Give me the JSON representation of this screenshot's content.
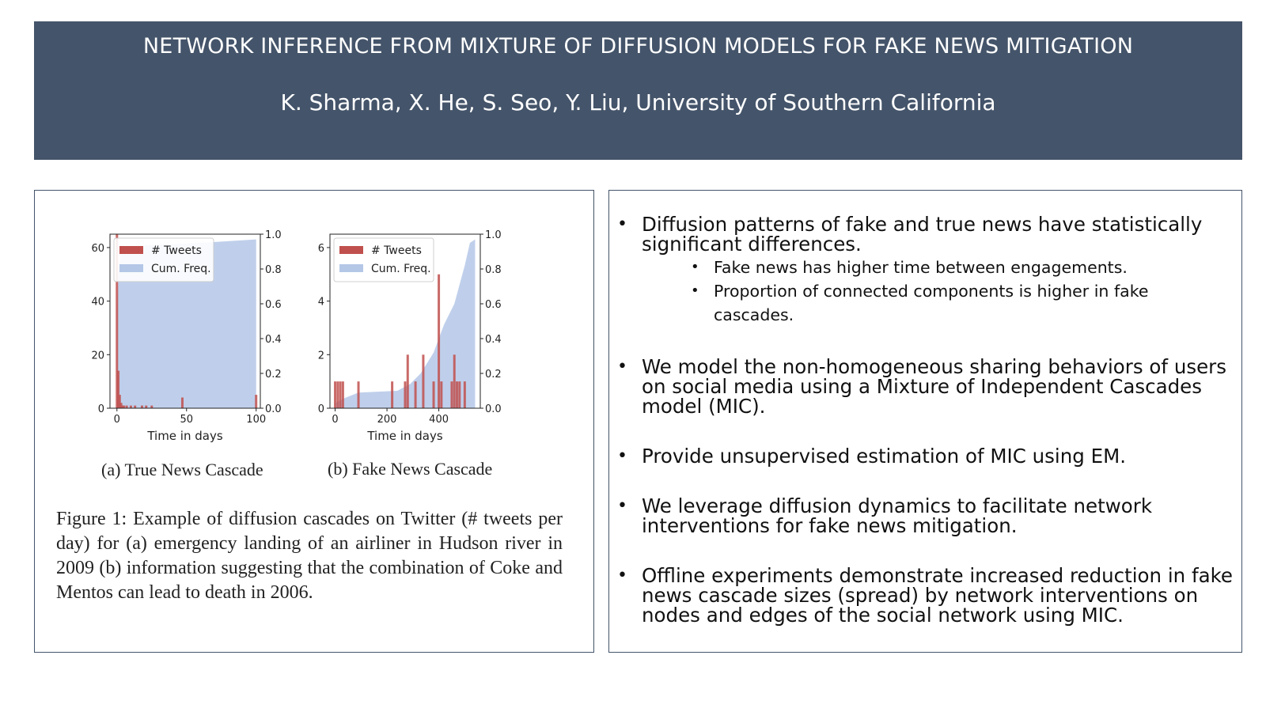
{
  "header": {
    "title": "NETWORK INFERENCE FROM MIXTURE OF DIFFUSION MODELS FOR FAKE NEWS MITIGATION",
    "authors": "K. Sharma, X. He, S. Seo, Y. Liu, University of Southern California"
  },
  "figure": {
    "caption": "Figure 1: Example of diffusion cascades on Twitter (# tweets per day) for (a) emergency landing of an airliner in Hudson river in 2009 (b) information suggesting that the combination of Coke and Mentos can lead to death in 2006.",
    "subcaption_a": "(a) True News Cascade",
    "subcaption_b": "(b) Fake News Cascade"
  },
  "chart_data": [
    {
      "type": "bar",
      "xlabel": "Time in days",
      "ylim": [
        0,
        65
      ],
      "y2lim": [
        0,
        1.0
      ],
      "xlim": [
        -5,
        103
      ],
      "xticks": [
        "0",
        "50",
        "100"
      ],
      "yticks": [
        "0",
        "20",
        "40",
        "60"
      ],
      "y2ticks": [
        "0.0",
        "0.2",
        "0.4",
        "0.6",
        "0.8",
        "1.0"
      ],
      "legend_placement": "top-left",
      "series": [
        {
          "name": "# Tweets",
          "color": "#c0504d",
          "x": [
            0,
            1,
            2,
            3,
            4,
            5,
            7,
            10,
            13,
            18,
            21,
            25,
            47,
            100
          ],
          "values": [
            65,
            14,
            5,
            2,
            1,
            1,
            1,
            1,
            1,
            1,
            1,
            1,
            4,
            5
          ]
        },
        {
          "name": "Cum. Freq.",
          "color": "#b4c7e7",
          "x": [
            0,
            1,
            2,
            3,
            5,
            10,
            30,
            60,
            100
          ],
          "values": [
            0.55,
            0.75,
            0.85,
            0.9,
            0.92,
            0.93,
            0.94,
            0.95,
            0.97
          ]
        }
      ]
    },
    {
      "type": "bar",
      "xlabel": "Time in days",
      "ylim": [
        0,
        6.5
      ],
      "y2lim": [
        0,
        1.0
      ],
      "xlim": [
        -20,
        560
      ],
      "xticks": [
        "0",
        "200",
        "400"
      ],
      "yticks": [
        "0",
        "2",
        "4",
        "6"
      ],
      "y2ticks": [
        "0.0",
        "0.2",
        "0.4",
        "0.6",
        "0.8",
        "1.0"
      ],
      "legend_placement": "top-left",
      "series": [
        {
          "name": "# Tweets",
          "color": "#c0504d",
          "x": [
            0,
            10,
            20,
            30,
            90,
            220,
            270,
            280,
            310,
            340,
            380,
            400,
            410,
            450,
            460,
            470,
            480,
            500
          ],
          "values": [
            1,
            1,
            1,
            1,
            1,
            1,
            1,
            2,
            1,
            2,
            1,
            5,
            1,
            1,
            2,
            1,
            1,
            1
          ]
        },
        {
          "name": "Cum. Freq.",
          "color": "#b4c7e7",
          "x": [
            0,
            40,
            90,
            240,
            290,
            330,
            380,
            420,
            460,
            500,
            520,
            540
          ],
          "values": [
            0.03,
            0.06,
            0.09,
            0.1,
            0.14,
            0.2,
            0.32,
            0.48,
            0.6,
            0.82,
            0.95,
            0.97
          ]
        }
      ]
    }
  ],
  "bullets": [
    {
      "text": "Diffusion patterns of fake and true news have statistically significant differences.",
      "subs": [
        "Fake news has higher time between engagements.",
        "Proportion of connected components is higher in fake cascades."
      ]
    },
    {
      "text": "We model the non-homogeneous sharing behaviors of users on social media using a Mixture of Independent Cascades model (MIC).",
      "subs": []
    },
    {
      "text": "Provide unsupervised estimation of MIC using EM.",
      "subs": []
    },
    {
      "text": "We leverage diffusion dynamics to facilitate network interventions for fake news mitigation.",
      "subs": []
    },
    {
      "text": "Offline experiments demonstrate increased reduction in fake news cascade sizes (spread) by network interventions on nodes and edges of the social network using MIC.",
      "subs": []
    }
  ]
}
